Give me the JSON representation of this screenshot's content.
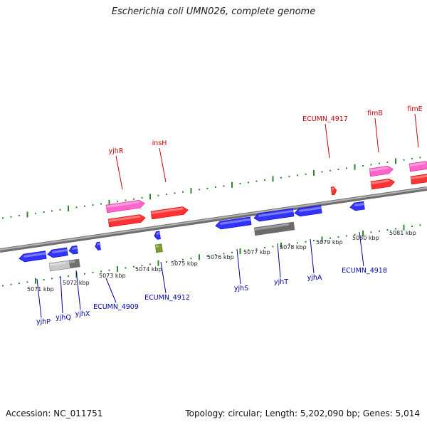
{
  "title": "Escherichia coli UMN026, complete genome",
  "accession_text": "Accession: NC_011751",
  "summary_text": "Topology: circular; Length: 5,202,090 bp; Genes: 5,014",
  "colors": {
    "forward_label": "#cc0000",
    "reverse_label": "#0000aa",
    "tick": "#2a8a2a",
    "backbone": "#8c8c8c"
  },
  "axis": {
    "unit": "kbp",
    "ticks": [
      {
        "label": "5071 kbp"
      },
      {
        "label": "5072 kbp"
      },
      {
        "label": "5073 kbp"
      },
      {
        "label": "5074 kbp"
      },
      {
        "label": "5075 kbp"
      },
      {
        "label": "5076 kbp"
      },
      {
        "label": "5077 kbp"
      },
      {
        "label": "5078 kbp"
      },
      {
        "label": "5079 kbp"
      },
      {
        "label": "5080 kbp"
      },
      {
        "label": "5081 kbp"
      }
    ]
  },
  "features": [
    {
      "kind": "pink-forward",
      "name": "yjhR-feature-upper"
    },
    {
      "kind": "red-forward",
      "name": "yjhR-feature-lower"
    },
    {
      "kind": "red-forward",
      "name": "insH-feature"
    },
    {
      "kind": "red-forward-small",
      "name": "ECUMN_4917-feature"
    },
    {
      "kind": "pink-forward",
      "name": "fimB-feature-upper"
    },
    {
      "kind": "red-forward",
      "name": "fimB-feature-lower"
    },
    {
      "kind": "pink-forward",
      "name": "fimE-feature-upper"
    },
    {
      "kind": "red-forward",
      "name": "fimE-feature-lower"
    },
    {
      "kind": "blue-reverse",
      "name": "yjhP-feature"
    },
    {
      "kind": "blue-reverse",
      "name": "yjhQ-feature"
    },
    {
      "kind": "blue-reverse",
      "name": "yjhX-feature"
    },
    {
      "kind": "grey",
      "name": "pseudo-feature-light"
    },
    {
      "kind": "grey",
      "name": "pseudo-feature-dark"
    },
    {
      "kind": "blue-reverse-small",
      "name": "ECUMN_4909-feature"
    },
    {
      "kind": "blue-reverse-small",
      "name": "ECUMN_4912-feature"
    },
    {
      "kind": "olive",
      "name": "misc-feature"
    },
    {
      "kind": "blue-reverse",
      "name": "yjhS-feature"
    },
    {
      "kind": "blue-reverse",
      "name": "yjhT-feature"
    },
    {
      "kind": "grey",
      "name": "yjhT-pseudo-feature"
    },
    {
      "kind": "blue-reverse",
      "name": "yjhA-feature"
    },
    {
      "kind": "blue-reverse",
      "name": "ECUMN_4918-feature"
    }
  ],
  "forward_labels": [
    {
      "text": "yjhR"
    },
    {
      "text": "insH"
    },
    {
      "text": "ECUMN_4917"
    },
    {
      "text": "fimB"
    },
    {
      "text": "fimE"
    }
  ],
  "reverse_labels": [
    {
      "text": "yjhP"
    },
    {
      "text": "yjhQ"
    },
    {
      "text": "yjhX"
    },
    {
      "text": "ECUMN_4909"
    },
    {
      "text": "ECUMN_4912"
    },
    {
      "text": "yjhS"
    },
    {
      "text": "yjhT"
    },
    {
      "text": "yjhA"
    },
    {
      "text": "ECUMN_4918"
    }
  ]
}
